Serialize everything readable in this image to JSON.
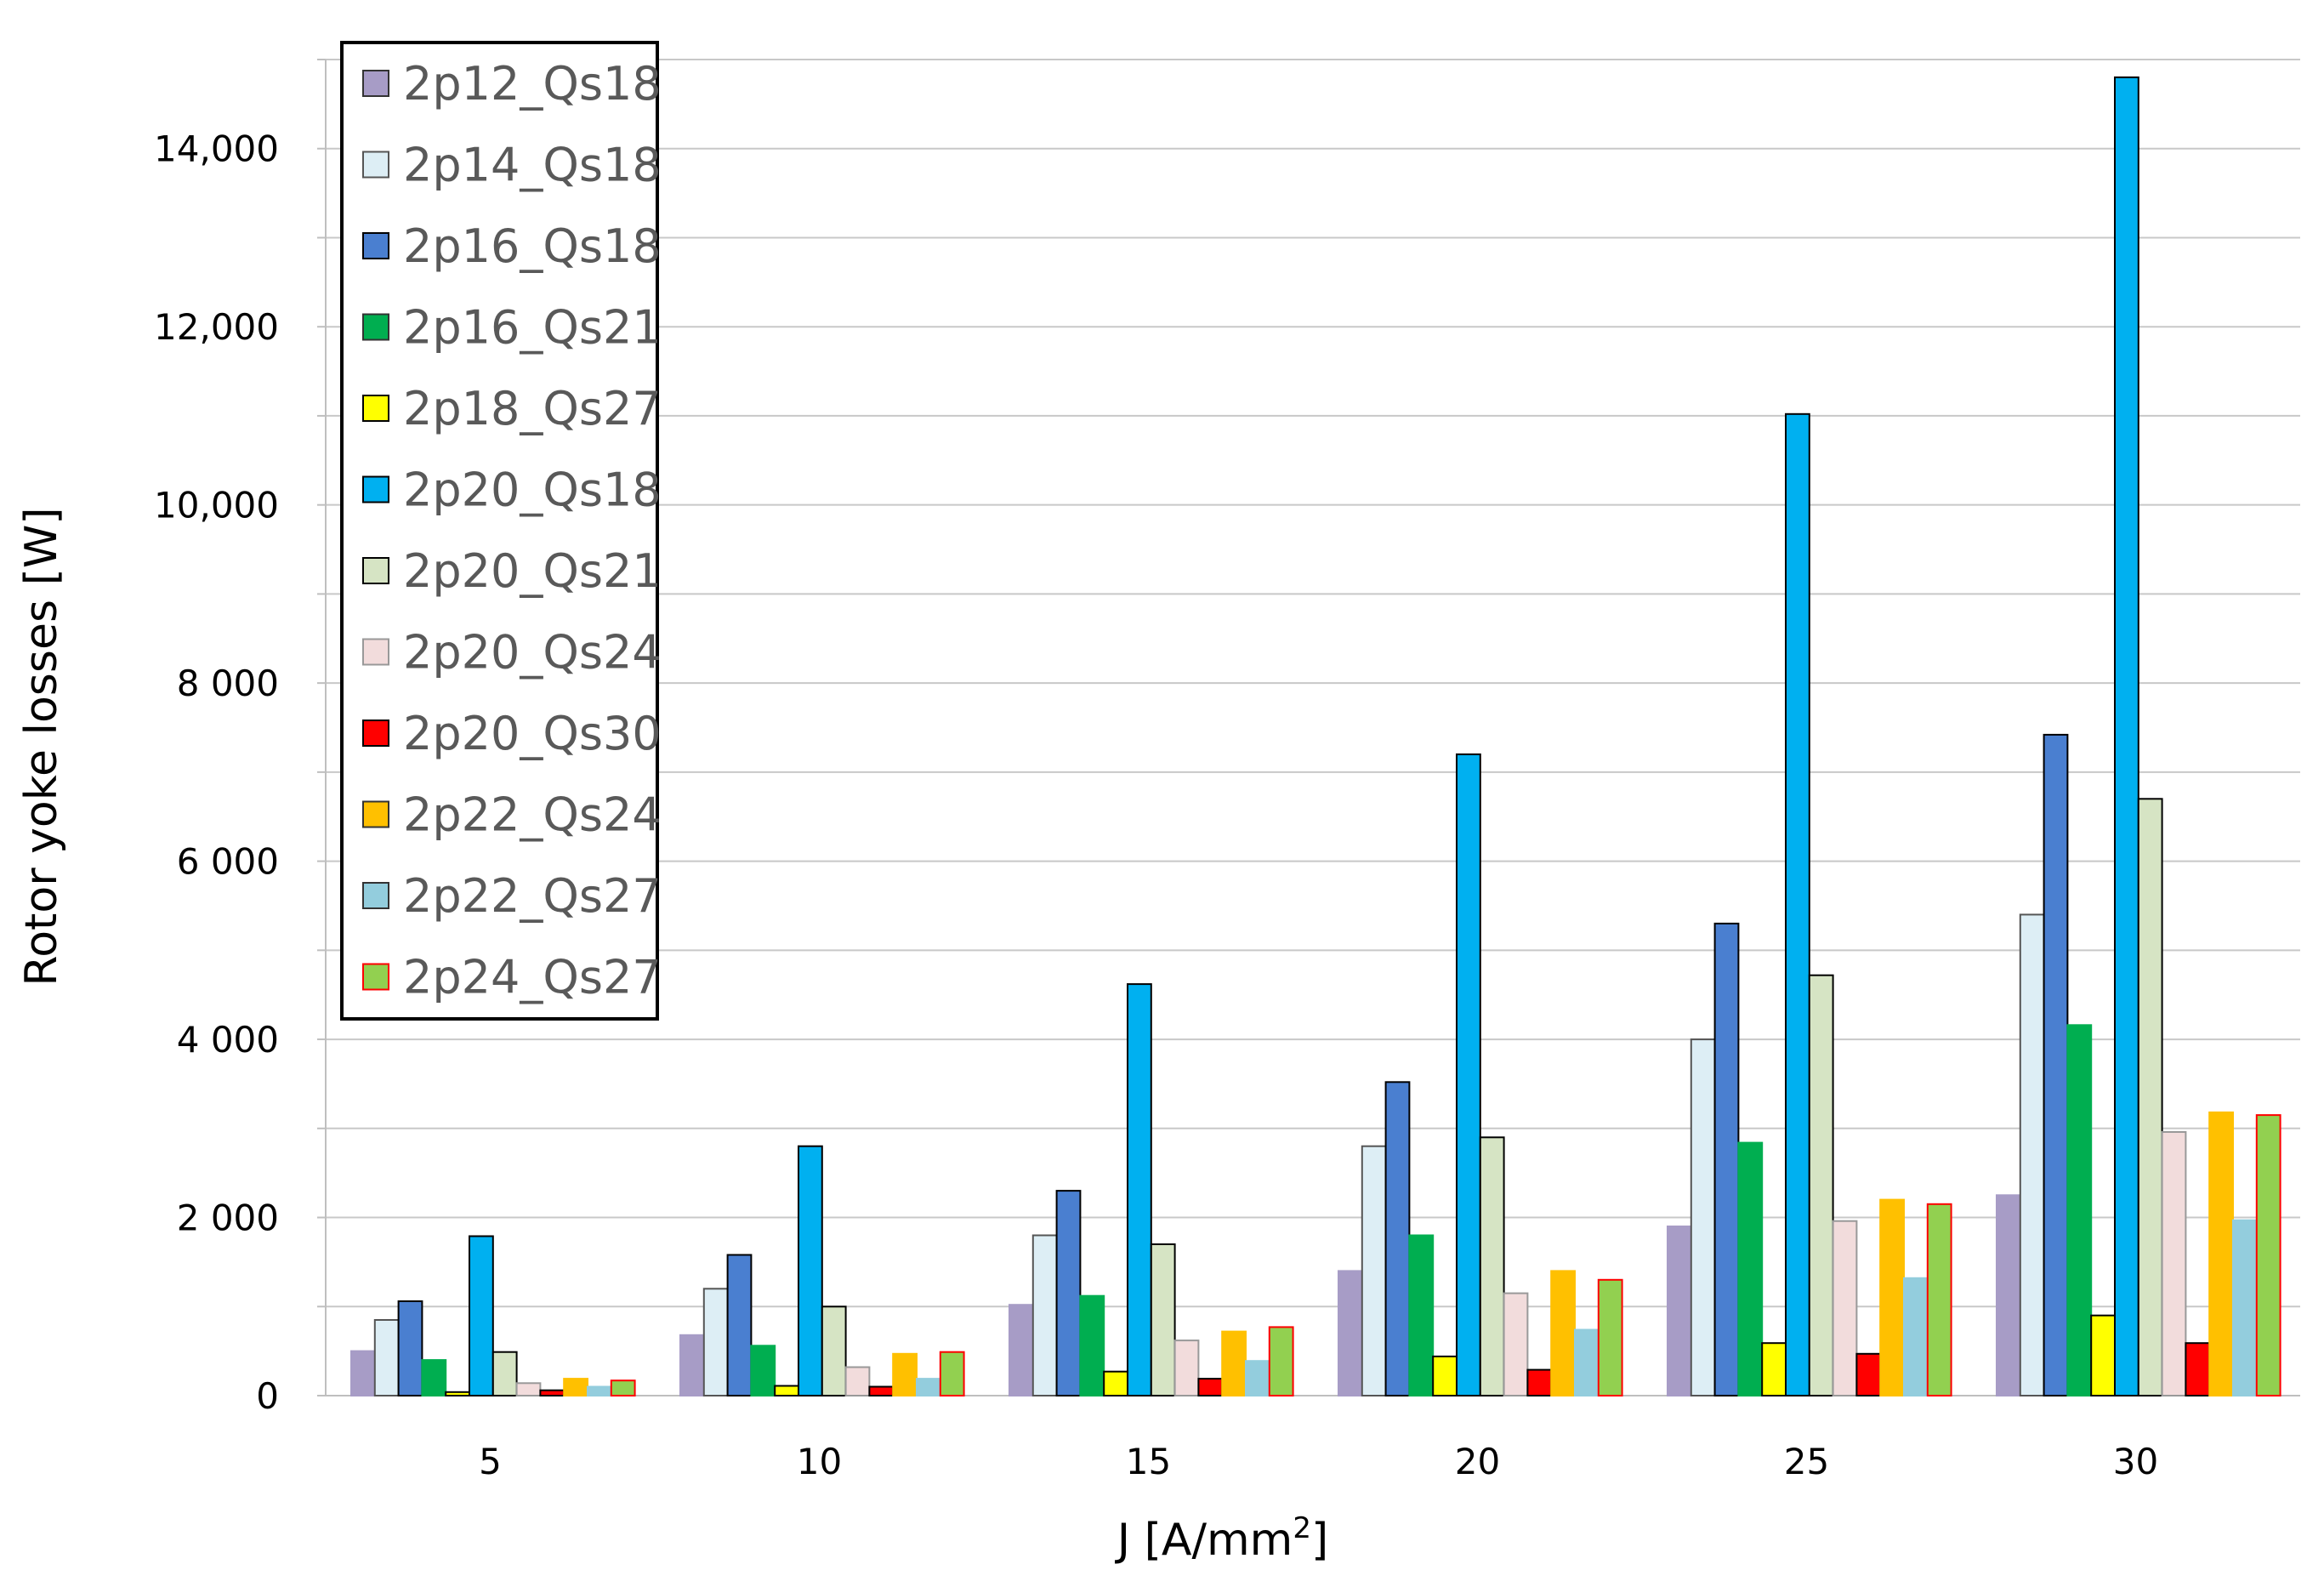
{
  "chart_data": {
    "type": "bar",
    "title": "",
    "xlabel": "J [A/mm",
    "xlabel_sup": "2",
    "xlabel_end": "]",
    "ylabel": "Rotor yoke losses [W]",
    "ylim": [
      0,
      15000
    ],
    "grid": true,
    "legend_position": "top-left",
    "categories": [
      "5",
      "10",
      "15",
      "20",
      "25",
      "30"
    ],
    "y_ticks": [
      {
        "value": 0,
        "label": "0"
      },
      {
        "value": 2000,
        "label": "2 000"
      },
      {
        "value": 4000,
        "label": "4 000"
      },
      {
        "value": 6000,
        "label": "6 000"
      },
      {
        "value": 8000,
        "label": "8 000"
      },
      {
        "value": 10000,
        "label": "10,000"
      },
      {
        "value": 12000,
        "label": "12,000"
      },
      {
        "value": 14000,
        "label": "14,000"
      }
    ],
    "series": [
      {
        "name": "2p12_Qs18",
        "color": "#a79cc6",
        "stroke": "#a79cc6",
        "values": [
          500,
          680,
          1020,
          1400,
          1900,
          2250
        ]
      },
      {
        "name": "2p14_Qs18",
        "color": "#ddeef5",
        "stroke": "#555555",
        "values": [
          850,
          1200,
          1800,
          2800,
          4000,
          5400
        ]
      },
      {
        "name": "2p16_Qs18",
        "color": "#4a7fd0",
        "stroke": "#000000",
        "values": [
          1060,
          1580,
          2300,
          3520,
          5300,
          7420
        ]
      },
      {
        "name": "2p16_Qs21",
        "color": "#00ae50",
        "stroke": "#00ae50",
        "values": [
          400,
          560,
          1120,
          1800,
          2840,
          4160
        ]
      },
      {
        "name": "2p18_Qs27",
        "color": "#ffff00",
        "stroke": "#000000",
        "values": [
          40,
          110,
          270,
          440,
          590,
          900
        ]
      },
      {
        "name": "2p20_Qs18",
        "color": "#00b0f0",
        "stroke": "#000000",
        "values": [
          1790,
          2800,
          4620,
          7200,
          11020,
          14800
        ]
      },
      {
        "name": "2p20_Qs21",
        "color": "#d6e4c4",
        "stroke": "#000000",
        "values": [
          490,
          1000,
          1700,
          2900,
          4720,
          6700
        ]
      },
      {
        "name": "2p20_Qs24",
        "color": "#f2dcdc",
        "stroke": "#999999",
        "values": [
          140,
          320,
          620,
          1150,
          1960,
          2960
        ]
      },
      {
        "name": "2p20_Qs30",
        "color": "#ff0000",
        "stroke": "#000000",
        "values": [
          60,
          100,
          190,
          290,
          470,
          590
        ]
      },
      {
        "name": "2p22_Qs24",
        "color": "#ffc000",
        "stroke": "#ffc000",
        "values": [
          190,
          470,
          720,
          1400,
          2200,
          3180
        ]
      },
      {
        "name": "2p22_Qs27",
        "color": "#93cddd",
        "stroke": "#93cddd",
        "values": [
          100,
          190,
          390,
          740,
          1320,
          1970
        ]
      },
      {
        "name": "2p24_Qs27",
        "color": "#92d050",
        "stroke": "#ff0000",
        "values": [
          170,
          490,
          770,
          1300,
          2150,
          3150
        ]
      }
    ]
  }
}
